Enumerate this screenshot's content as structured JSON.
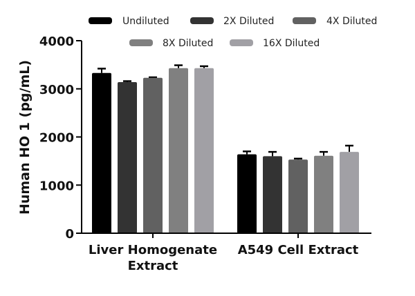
{
  "chart_data": {
    "type": "bar",
    "title": "",
    "xlabel": "",
    "ylabel": "Human HO 1 (pg/mL)",
    "ylim": [
      0,
      4000
    ],
    "yticks": [
      0,
      1000,
      2000,
      3000,
      4000
    ],
    "grid": false,
    "legend_position": "top",
    "categories": [
      "Liver Homogenate Extract",
      "A549 Cell Extract"
    ],
    "category_label_lines": [
      [
        "Liver Homogenate",
        "Extract"
      ],
      [
        "A549 Cell Extract"
      ]
    ],
    "series": [
      {
        "name": "Undiluted",
        "color": "#000000",
        "values": [
          3330,
          1640
        ],
        "errors": [
          90,
          60
        ]
      },
      {
        "name": "2X Diluted",
        "color": "#333333",
        "values": [
          3140,
          1600
        ],
        "errors": [
          20,
          90
        ]
      },
      {
        "name": "4X Diluted",
        "color": "#616161",
        "values": [
          3230,
          1530
        ],
        "errors": [
          10,
          20
        ]
      },
      {
        "name": "8X Diluted",
        "color": "#808080",
        "values": [
          3430,
          1610
        ],
        "errors": [
          60,
          80
        ]
      },
      {
        "name": "16X Diluted",
        "color": "#a1a0a5",
        "values": [
          3430,
          1690
        ],
        "errors": [
          40,
          130
        ]
      }
    ]
  }
}
